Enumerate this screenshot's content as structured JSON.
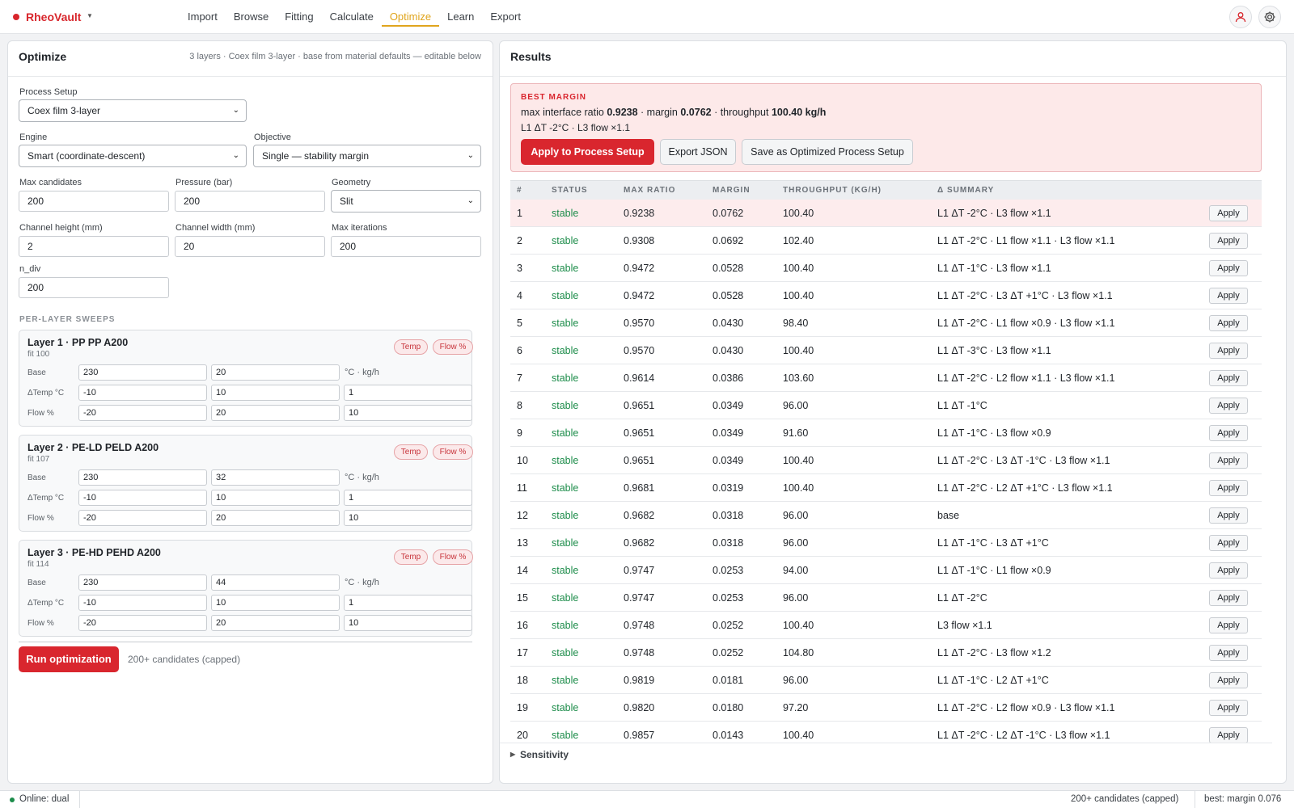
{
  "app": {
    "name": "RheoVault",
    "brand_color": "#d8262c"
  },
  "nav": [
    {
      "label": "Import",
      "active": false
    },
    {
      "label": "Browse",
      "active": false
    },
    {
      "label": "Fitting",
      "active": false
    },
    {
      "label": "Calculate",
      "active": false
    },
    {
      "label": "Optimize",
      "active": true
    },
    {
      "label": "Learn",
      "active": false
    },
    {
      "label": "Export",
      "active": false
    }
  ],
  "header_icons": [
    "user-icon",
    "gear-icon"
  ],
  "optimize": {
    "title": "Optimize",
    "subtitle": "3 layers · Coex film 3-layer · base from material defaults — editable below",
    "process_setup_label": "Process Setup",
    "process_setup_value": "Coex film 3-layer",
    "engine_label": "Engine",
    "engine_value": "Smart (coordinate-descent)",
    "objective_label": "Objective",
    "objective_value": "Single — stability margin",
    "max_candidates_label": "Max candidates",
    "max_candidates_value": "200",
    "pressure_label": "Pressure (bar)",
    "pressure_value": "200",
    "geometry_label": "Geometry",
    "geometry_value": "Slit",
    "channel_height_label": "Channel height (mm)",
    "channel_height_value": "2",
    "channel_width_label": "Channel width (mm)",
    "channel_width_value": "20",
    "max_iterations_label": "Max iterations",
    "max_iterations_value": "200",
    "n_div_label": "n_div",
    "n_div_value": "200",
    "sweeps_title": "PER-LAYER SWEEPS",
    "chip_temp": "Temp",
    "chip_flow": "Flow %",
    "row_labels": {
      "base": "Base",
      "dtemp": "ΔTemp °C",
      "flow": "Flow %"
    },
    "unit_label": "°C · kg/h",
    "layers": [
      {
        "name": "Layer 1 · PP PP A200",
        "fit": "fit 100",
        "base": [
          "230",
          "20"
        ],
        "dtemp": [
          "-10",
          "10",
          "1"
        ],
        "flow": [
          "-20",
          "20",
          "10"
        ]
      },
      {
        "name": "Layer 2 · PE-LD PELD A200",
        "fit": "fit 107",
        "base": [
          "230",
          "32"
        ],
        "dtemp": [
          "-10",
          "10",
          "1"
        ],
        "flow": [
          "-20",
          "20",
          "10"
        ]
      },
      {
        "name": "Layer 3 · PE-HD PEHD A200",
        "fit": "fit 114",
        "base": [
          "230",
          "44"
        ],
        "dtemp": [
          "-10",
          "10",
          "1"
        ],
        "flow": [
          "-20",
          "20",
          "10"
        ]
      }
    ],
    "run_label": "Run optimization",
    "run_note": "200+ candidates (capped)"
  },
  "results": {
    "title": "Results",
    "best_tag": "BEST MARGIN",
    "best_ratio_label": "max interface ratio",
    "best_ratio": "0.9238",
    "best_margin_label": "margin",
    "best_margin": "0.0762",
    "best_throughput_label": "throughput",
    "best_throughput": "100.40 kg/h",
    "best_delta": "L1 ΔT -2°C · L3 flow ×1.1",
    "apply_btn": "Apply to Process Setup",
    "export_btn": "Export JSON",
    "save_btn": "Save as Optimized Process Setup",
    "columns": [
      "#",
      "STATUS",
      "MAX RATIO",
      "MARGIN",
      "THROUGHPUT (KG/H)",
      "Δ SUMMARY"
    ],
    "apply_label": "Apply",
    "rows": [
      {
        "n": "1",
        "status": "stable",
        "ratio": "0.9238",
        "margin": "0.0762",
        "thr": "100.40",
        "delta": "L1 ΔT -2°C · L3 flow ×1.1"
      },
      {
        "n": "2",
        "status": "stable",
        "ratio": "0.9308",
        "margin": "0.0692",
        "thr": "102.40",
        "delta": "L1 ΔT -2°C · L1 flow ×1.1 · L3 flow ×1.1"
      },
      {
        "n": "3",
        "status": "stable",
        "ratio": "0.9472",
        "margin": "0.0528",
        "thr": "100.40",
        "delta": "L1 ΔT -1°C · L3 flow ×1.1"
      },
      {
        "n": "4",
        "status": "stable",
        "ratio": "0.9472",
        "margin": "0.0528",
        "thr": "100.40",
        "delta": "L1 ΔT -2°C · L3 ΔT +1°C · L3 flow ×1.1"
      },
      {
        "n": "5",
        "status": "stable",
        "ratio": "0.9570",
        "margin": "0.0430",
        "thr": "98.40",
        "delta": "L1 ΔT -2°C · L1 flow ×0.9 · L3 flow ×1.1"
      },
      {
        "n": "6",
        "status": "stable",
        "ratio": "0.9570",
        "margin": "0.0430",
        "thr": "100.40",
        "delta": "L1 ΔT -3°C · L3 flow ×1.1"
      },
      {
        "n": "7",
        "status": "stable",
        "ratio": "0.9614",
        "margin": "0.0386",
        "thr": "103.60",
        "delta": "L1 ΔT -2°C · L2 flow ×1.1 · L3 flow ×1.1"
      },
      {
        "n": "8",
        "status": "stable",
        "ratio": "0.9651",
        "margin": "0.0349",
        "thr": "96.00",
        "delta": "L1 ΔT -1°C"
      },
      {
        "n": "9",
        "status": "stable",
        "ratio": "0.9651",
        "margin": "0.0349",
        "thr": "91.60",
        "delta": "L1 ΔT -1°C · L3 flow ×0.9"
      },
      {
        "n": "10",
        "status": "stable",
        "ratio": "0.9651",
        "margin": "0.0349",
        "thr": "100.40",
        "delta": "L1 ΔT -2°C · L3 ΔT -1°C · L3 flow ×1.1"
      },
      {
        "n": "11",
        "status": "stable",
        "ratio": "0.9681",
        "margin": "0.0319",
        "thr": "100.40",
        "delta": "L1 ΔT -2°C · L2 ΔT +1°C · L3 flow ×1.1"
      },
      {
        "n": "12",
        "status": "stable",
        "ratio": "0.9682",
        "margin": "0.0318",
        "thr": "96.00",
        "delta": "base"
      },
      {
        "n": "13",
        "status": "stable",
        "ratio": "0.9682",
        "margin": "0.0318",
        "thr": "96.00",
        "delta": "L1 ΔT -1°C · L3 ΔT +1°C"
      },
      {
        "n": "14",
        "status": "stable",
        "ratio": "0.9747",
        "margin": "0.0253",
        "thr": "94.00",
        "delta": "L1 ΔT -1°C · L1 flow ×0.9"
      },
      {
        "n": "15",
        "status": "stable",
        "ratio": "0.9747",
        "margin": "0.0253",
        "thr": "96.00",
        "delta": "L1 ΔT -2°C"
      },
      {
        "n": "16",
        "status": "stable",
        "ratio": "0.9748",
        "margin": "0.0252",
        "thr": "100.40",
        "delta": "L3 flow ×1.1"
      },
      {
        "n": "17",
        "status": "stable",
        "ratio": "0.9748",
        "margin": "0.0252",
        "thr": "104.80",
        "delta": "L1 ΔT -2°C · L3 flow ×1.2"
      },
      {
        "n": "18",
        "status": "stable",
        "ratio": "0.9819",
        "margin": "0.0181",
        "thr": "96.00",
        "delta": "L1 ΔT -1°C · L2 ΔT +1°C"
      },
      {
        "n": "19",
        "status": "stable",
        "ratio": "0.9820",
        "margin": "0.0180",
        "thr": "97.20",
        "delta": "L1 ΔT -2°C · L2 flow ×0.9 · L3 flow ×1.1"
      },
      {
        "n": "20",
        "status": "stable",
        "ratio": "0.9857",
        "margin": "0.0143",
        "thr": "100.40",
        "delta": "L1 ΔT -2°C · L2 ΔT -1°C · L3 flow ×1.1"
      }
    ],
    "sensitivity_label": "Sensitivity"
  },
  "statusbar": {
    "online": "Online: dual",
    "candidates": "200+ candidates (capped)",
    "best": "best: margin 0.076"
  }
}
